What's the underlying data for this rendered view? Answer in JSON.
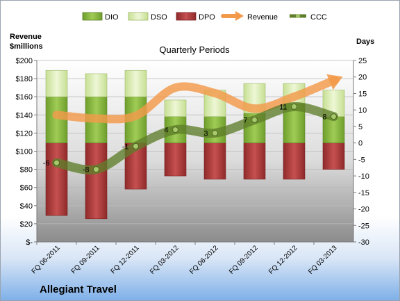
{
  "chart_data": {
    "type": "bar",
    "title": "Quarterly Periods",
    "company": "Allegiant Travel",
    "left_axis_label": "Revenue\n$millions",
    "right_axis_label": "Days",
    "categories": [
      "FQ 06-2011",
      "FQ 09-2011",
      "FQ 12-2011",
      "FQ 03-2012",
      "FQ 06-2012",
      "FQ 09-2012",
      "FQ 12-2012",
      "FQ 03-2013"
    ],
    "left_ticks": [
      "$-",
      "$20",
      "$40",
      "$60",
      "$80",
      "$100",
      "$120",
      "$140",
      "$160",
      "$180",
      "$200"
    ],
    "right_ticks": [
      "-30",
      "-25",
      "-20",
      "-15",
      "-10",
      "-5",
      "0",
      "5",
      "10",
      "15",
      "20",
      "25"
    ],
    "ylim_days": [
      -30,
      25
    ],
    "ylim_revenue": [
      0,
      200
    ],
    "legend": [
      "DIO",
      "DSO",
      "DPO",
      "Revenue",
      "CCC"
    ],
    "legend_position": "top",
    "grid": true,
    "series": [
      {
        "name": "DIO",
        "color": "#8cbf3f",
        "values": [
          14,
          14,
          14,
          8,
          8,
          9,
          12,
          8
        ]
      },
      {
        "name": "DSO",
        "color": "#d8ebb0",
        "values": [
          8,
          7,
          8,
          5,
          8,
          9,
          6,
          8
        ]
      },
      {
        "name": "DPO",
        "color": "#b03a3a",
        "values": [
          -22,
          -23,
          -14,
          -10,
          -11,
          -11,
          -11,
          -8
        ]
      },
      {
        "name": "CCC",
        "color": "#5f7d2a",
        "values": [
          -6,
          -8,
          -1,
          4,
          3,
          7,
          11,
          8
        ]
      },
      {
        "name": "Revenue",
        "color": "#f39a4a",
        "values": [
          140,
          136,
          139,
          170,
          164,
          147,
          160,
          178
        ]
      }
    ]
  }
}
